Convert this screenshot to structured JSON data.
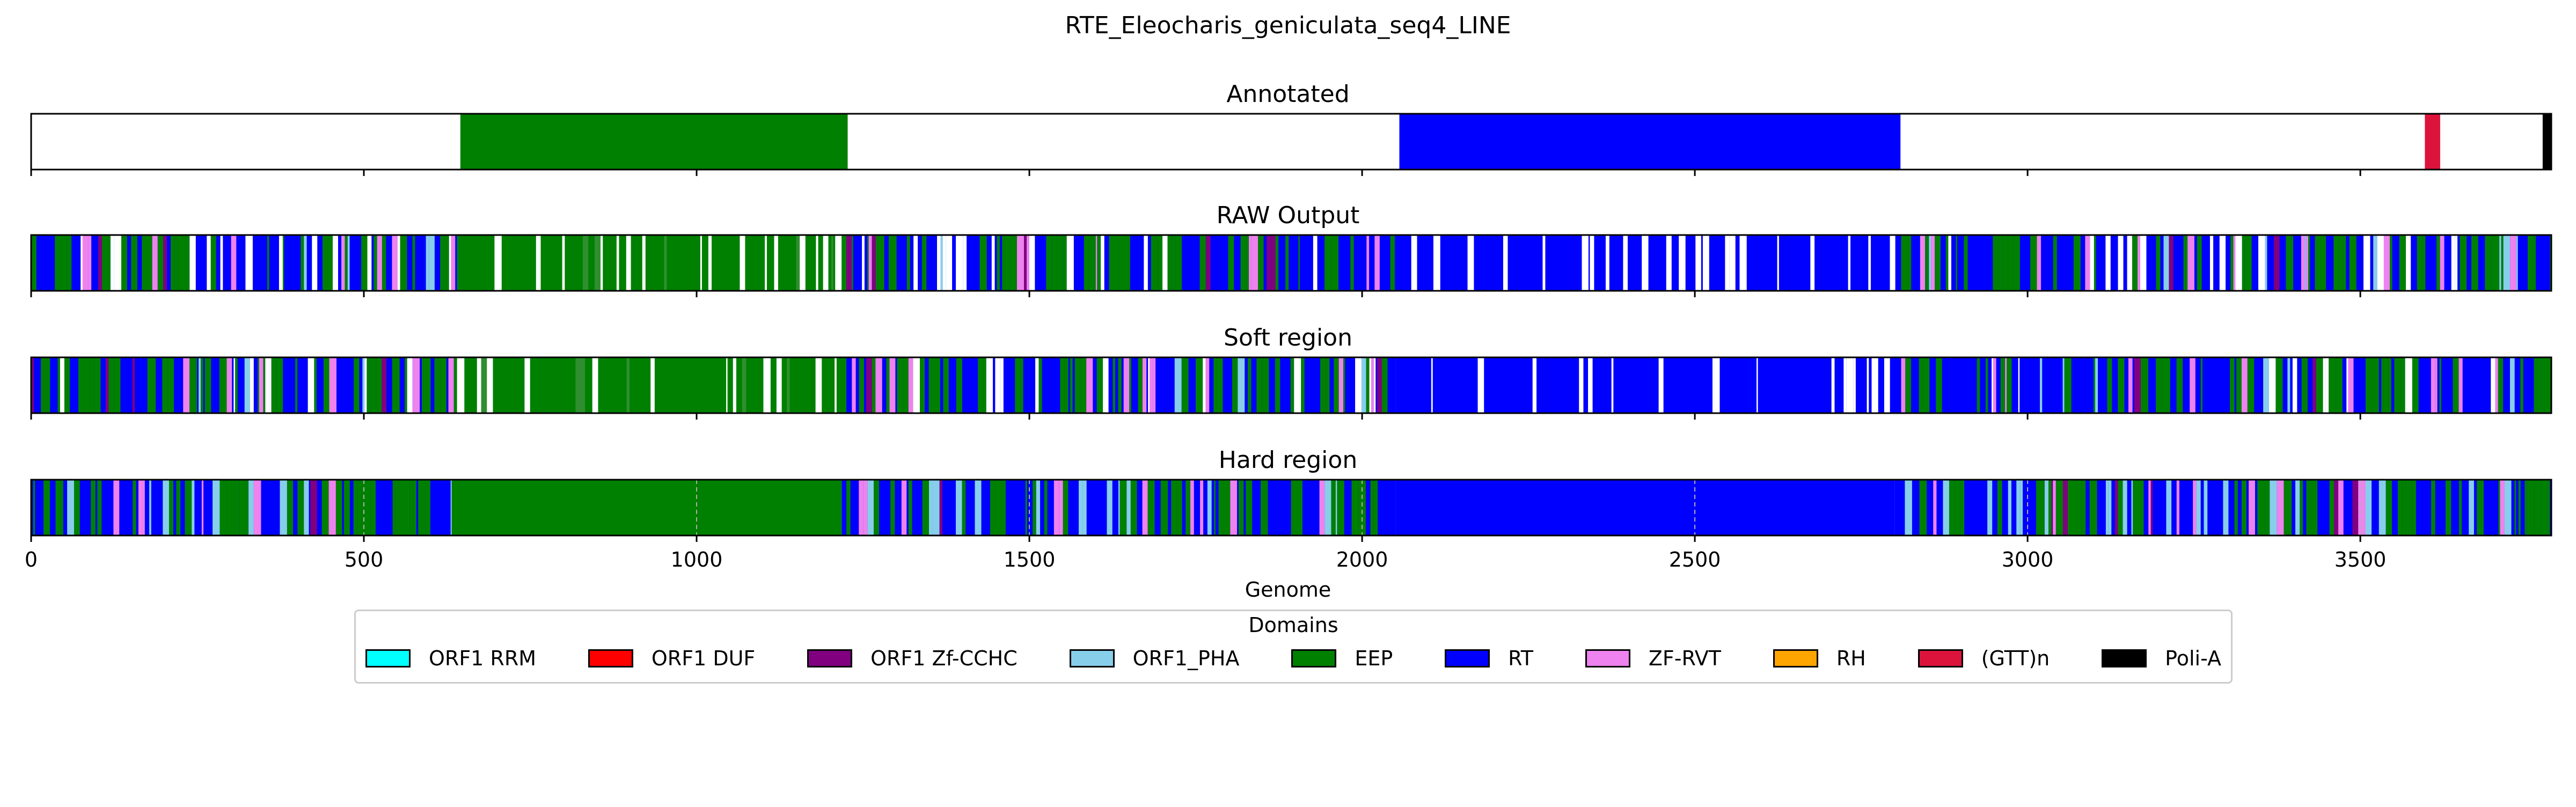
{
  "chart_data": {
    "type": "bar",
    "title": "RTE_Eleocharis_geniculata_seq4_LINE",
    "xlabel": "Genome",
    "xlim": [
      0,
      3787
    ],
    "x_ticks": [
      0,
      500,
      1000,
      1500,
      2000,
      2500,
      3000,
      3500
    ],
    "x_tick_labels": [
      "0",
      "500",
      "1000",
      "1500",
      "2000",
      "2500",
      "3000",
      "3500"
    ],
    "legend": {
      "title": "Domains",
      "placement": "bottom-center",
      "items": [
        {
          "name": "ORF1 RRM",
          "color": "#00ffff"
        },
        {
          "name": "ORF1 DUF",
          "color": "#ff0000"
        },
        {
          "name": "ORF1 Zf-CCHC",
          "color": "#800080"
        },
        {
          "name": "ORF1_PHA",
          "color": "#87ceeb"
        },
        {
          "name": "EEP",
          "color": "#008000"
        },
        {
          "name": "RT",
          "color": "#0000ff"
        },
        {
          "name": "ZF-RVT",
          "color": "#ee82ee"
        },
        {
          "name": "RH",
          "color": "#ffa500"
        },
        {
          "name": "(GTT)n",
          "color": "#dc143c"
        },
        {
          "name": "Poli-A",
          "color": "#000000"
        }
      ]
    },
    "panels": [
      {
        "title": "Annotated",
        "segments": [
          {
            "domain": "EEP",
            "start": 645,
            "end": 1227
          },
          {
            "domain": "RT",
            "start": 2056,
            "end": 2809
          },
          {
            "domain": "(GTT)n",
            "start": 3597,
            "end": 3620
          },
          {
            "domain": "Poli-A",
            "start": 3774,
            "end": 3787
          }
        ]
      },
      {
        "title": "RAW Output",
        "regions": [
          {
            "start": 0,
            "end": 640,
            "domain": "RT",
            "mix": "mixed",
            "gaps": true
          },
          {
            "start": 640,
            "end": 1225,
            "domain": "EEP",
            "mix": "gappy"
          },
          {
            "start": 1225,
            "end": 1700,
            "domain": "RT",
            "mix": "mixed",
            "gaps": true
          },
          {
            "start": 1700,
            "end": 2050,
            "domain": "RT",
            "mix": "mixed",
            "gaps": true
          },
          {
            "start": 2050,
            "end": 2810,
            "domain": "RT",
            "mix": "gappy"
          },
          {
            "start": 2810,
            "end": 3787,
            "domain": "RT",
            "mix": "mixed",
            "gaps": true
          }
        ]
      },
      {
        "title": "Soft region",
        "regions": [
          {
            "start": 0,
            "end": 640,
            "domain": "RT",
            "mix": "mixed",
            "gaps": true
          },
          {
            "start": 640,
            "end": 1225,
            "domain": "EEP",
            "mix": "gappy"
          },
          {
            "start": 1225,
            "end": 2050,
            "domain": "RT",
            "mix": "mixed",
            "gaps": true
          },
          {
            "start": 2050,
            "end": 2810,
            "domain": "RT",
            "mix": "gappy"
          },
          {
            "start": 2810,
            "end": 3787,
            "domain": "RT",
            "mix": "mixed",
            "gaps": true
          }
        ]
      },
      {
        "title": "Hard region",
        "grid": true,
        "regions": [
          {
            "start": 0,
            "end": 632,
            "domain": "RT",
            "mix": "mixed"
          },
          {
            "start": 632,
            "end": 1218,
            "domain": "EEP",
            "mix": "solid"
          },
          {
            "start": 1218,
            "end": 2050,
            "domain": "RT",
            "mix": "mixed"
          },
          {
            "start": 2050,
            "end": 2800,
            "domain": "RT",
            "mix": "solid"
          },
          {
            "start": 2800,
            "end": 3787,
            "domain": "RT",
            "mix": "mixed"
          }
        ]
      }
    ]
  }
}
